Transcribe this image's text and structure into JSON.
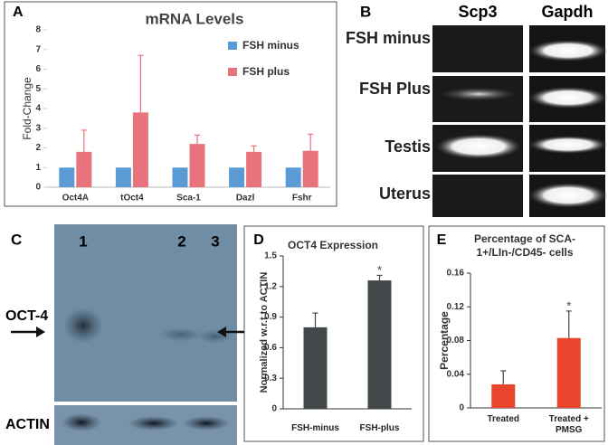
{
  "chart_data": [
    {
      "type": "bar",
      "panel_label": "A",
      "title": "mRNA Levels",
      "y_label": "Fold-Change",
      "categories": [
        "Oct4A",
        "tOct4",
        "Sca-1",
        "Dazl",
        "Fshr"
      ],
      "series": [
        {
          "name": "FSH minus",
          "color": "#5b9bd5",
          "values": [
            1,
            1,
            1,
            1,
            1
          ]
        },
        {
          "name": "FSH plus",
          "color": "#e8737c",
          "values": [
            1.8,
            3.8,
            2.2,
            1.8,
            1.85
          ],
          "errors": [
            1.1,
            2.9,
            0.45,
            0.3,
            0.85
          ]
        }
      ],
      "ylim": [
        0,
        8
      ],
      "yticks": [
        0,
        1,
        2,
        3,
        4,
        5,
        6,
        7,
        8
      ],
      "legend": "upper right"
    },
    {
      "type": "bar",
      "panel_label": "D",
      "title": "OCT4 Expression",
      "y_label": "Normalized w.r.t to ACTIN",
      "categories": [
        "FSH-minus",
        "FSH-plus"
      ],
      "values": [
        0.8,
        1.26
      ],
      "errors": [
        0.14,
        0.05
      ],
      "color": "#42474a",
      "annotations": [
        "*"
      ],
      "ylim": [
        0,
        1.5
      ],
      "yticks": [
        0,
        0.3,
        0.6,
        0.9,
        1.2,
        1.5
      ]
    },
    {
      "type": "bar",
      "panel_label": "E",
      "title": "Percentage of SCA-1+/LIn-/CD45- cells",
      "y_label": "Percentage",
      "categories": [
        "Treated",
        "Treated + PMSG"
      ],
      "values": [
        0.028,
        0.083
      ],
      "errors": [
        0.016,
        0.032
      ],
      "color": "#e8452c",
      "annotations": [
        "*"
      ],
      "ylim": [
        0,
        0.16
      ],
      "yticks": [
        0,
        0.04,
        0.08,
        0.12,
        0.16
      ]
    }
  ],
  "panel_b": {
    "label": "B",
    "columns": [
      "Scp3",
      "Gapdh"
    ],
    "rows": [
      "FSH minus",
      "FSH Plus",
      "Testis",
      "Uterus"
    ]
  },
  "panel_c": {
    "label": "C",
    "lanes": [
      "1",
      "2",
      "3"
    ],
    "bands": [
      "OCT-4",
      "ACTIN"
    ]
  }
}
